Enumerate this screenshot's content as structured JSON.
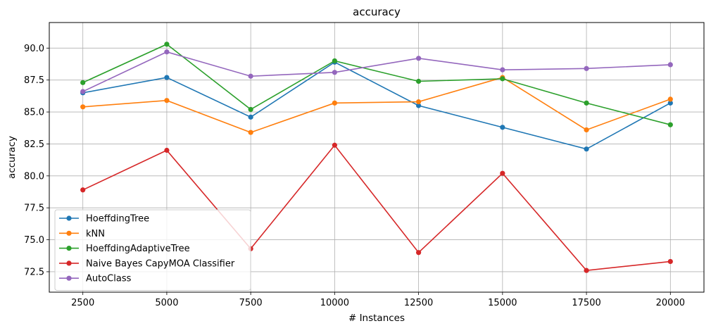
{
  "chart_data": {
    "type": "line",
    "title": "accuracy",
    "xlabel": "# Instances",
    "ylabel": "accuracy",
    "x": [
      2500,
      5000,
      7500,
      10000,
      12500,
      15000,
      17500,
      20000
    ],
    "xticks": [
      2500,
      5000,
      7500,
      10000,
      12500,
      15000,
      17500,
      20000
    ],
    "yticks": [
      72.5,
      75.0,
      77.5,
      80.0,
      82.5,
      85.0,
      87.5,
      90.0
    ],
    "xlim": [
      1500,
      21000
    ],
    "ylim": [
      70.9,
      92.0
    ],
    "grid": true,
    "legend_position": "lower-left",
    "series": [
      {
        "name": "HoeffdingTree",
        "color": "#1f77b4",
        "values": [
          86.5,
          87.7,
          84.6,
          88.9,
          85.5,
          83.8,
          82.1,
          85.7
        ]
      },
      {
        "name": "kNN",
        "color": "#ff7f0e",
        "values": [
          85.4,
          85.9,
          83.4,
          85.7,
          85.8,
          87.7,
          83.6,
          86.0
        ]
      },
      {
        "name": "HoeffdingAdaptiveTree",
        "color": "#2ca02c",
        "values": [
          87.3,
          90.3,
          85.2,
          89.0,
          87.4,
          87.6,
          85.7,
          84.0
        ]
      },
      {
        "name": "Naive Bayes CapyMOA Classifier",
        "color": "#d62728",
        "values": [
          78.9,
          82.0,
          74.3,
          82.4,
          74.0,
          80.2,
          72.6,
          73.3
        ]
      },
      {
        "name": "AutoClass",
        "color": "#9467bd",
        "values": [
          86.6,
          89.7,
          87.8,
          88.1,
          89.2,
          88.3,
          88.4,
          88.7
        ]
      }
    ]
  }
}
